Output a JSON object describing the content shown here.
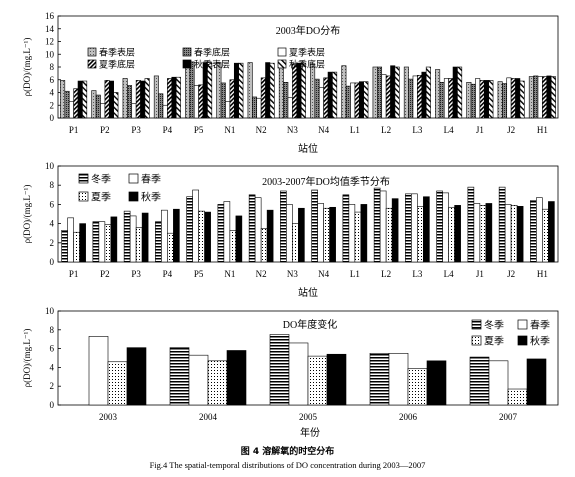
{
  "caption": {
    "cn": "图 4   溶解氧的时空分布",
    "en": "Fig.4    The spatial-temporal distributions of DO concentration during 2003—2007"
  },
  "chart_data": [
    {
      "type": "bar",
      "title": "2003年DO分布",
      "xlabel": "站位",
      "ylabel": "ρ(DO)/(mg.L⁻¹)",
      "ylim": [
        0,
        16
      ],
      "yticks": [
        0,
        2,
        4,
        6,
        8,
        10,
        12,
        14,
        16
      ],
      "legend_position": "top",
      "categories": [
        "P1",
        "P2",
        "P3",
        "P4",
        "P5",
        "N1",
        "N2",
        "N3",
        "N4",
        "L1",
        "L2",
        "L3",
        "L4",
        "J1",
        "J2",
        "H1"
      ],
      "series": [
        {
          "name": "春季表层",
          "pattern": "dots-gray",
          "values": [
            5.9,
            4.3,
            6.2,
            6.6,
            8.7,
            8.7,
            8.7,
            8.7,
            8.5,
            8.2,
            8.0,
            8.0,
            7.6,
            5.6,
            5.7,
            6.5
          ]
        },
        {
          "name": "春季底层",
          "pattern": "dense-dots",
          "values": [
            4.2,
            3.6,
            5.1,
            3.8,
            8.8,
            5.5,
            3.3,
            5.6,
            6.1,
            5.0,
            8.0,
            6.1,
            5.6,
            5.3,
            5.4,
            6.6
          ]
        },
        {
          "name": "夏季表层",
          "pattern": "white",
          "values": [
            2.6,
            2.3,
            2.3,
            2.0,
            5.1,
            2.6,
            3.1,
            3.2,
            4.8,
            5.5,
            6.8,
            6.6,
            6.2,
            6.2,
            6.3,
            6.5
          ]
        },
        {
          "name": "夏季底层",
          "pattern": "hatch-dense",
          "values": [
            4.6,
            5.9,
            5.9,
            6.2,
            5.2,
            6.0,
            6.3,
            8.5,
            6.3,
            5.5,
            6.6,
            6.7,
            6.2,
            5.9,
            6.2,
            6.5
          ]
        },
        {
          "name": "秋季表层",
          "pattern": "black",
          "values": [
            5.8,
            5.8,
            5.8,
            6.4,
            8.7,
            8.6,
            8.7,
            8.6,
            7.2,
            5.7,
            8.2,
            7.2,
            8.0,
            5.9,
            6.2,
            6.6
          ]
        },
        {
          "name": "秋季底层",
          "pattern": "hatch",
          "values": [
            5.8,
            4.0,
            6.2,
            6.4,
            8.7,
            8.6,
            8.6,
            8.6,
            7.2,
            5.7,
            8.0,
            8.0,
            8.0,
            5.9,
            5.8,
            6.5
          ]
        }
      ]
    },
    {
      "type": "bar",
      "title": "2003-2007年DO均值季节分布",
      "xlabel": "站位",
      "ylabel": "ρ(DO)/(mg.L⁻¹)",
      "ylim": [
        0,
        10
      ],
      "yticks": [
        0,
        2,
        4,
        6,
        8,
        10
      ],
      "legend_position": "top-left",
      "categories": [
        "P1",
        "P2",
        "P3",
        "P4",
        "P5",
        "N1",
        "N2",
        "N3",
        "N4",
        "L1",
        "L2",
        "L3",
        "L4",
        "J1",
        "J2",
        "H1"
      ],
      "series": [
        {
          "name": "冬季",
          "pattern": "stripe",
          "values": [
            3.3,
            4.2,
            5.3,
            4.2,
            6.8,
            6.0,
            7.0,
            7.4,
            7.5,
            7.0,
            7.7,
            7.1,
            7.4,
            7.8,
            7.8,
            6.4
          ]
        },
        {
          "name": "春季",
          "pattern": "white",
          "values": [
            4.6,
            4.2,
            4.8,
            5.4,
            7.5,
            6.3,
            6.7,
            6.0,
            6.1,
            6.0,
            7.4,
            7.1,
            7.2,
            6.1,
            6.0,
            6.7
          ]
        },
        {
          "name": "夏季",
          "pattern": "dots",
          "values": [
            3.1,
            3.9,
            3.6,
            3.0,
            5.3,
            3.3,
            3.5,
            4.0,
            5.6,
            5.2,
            5.6,
            5.8,
            5.7,
            5.9,
            5.9,
            5.5
          ]
        },
        {
          "name": "秋季",
          "pattern": "black",
          "values": [
            4.0,
            4.7,
            5.1,
            5.5,
            5.2,
            4.8,
            5.4,
            5.6,
            5.7,
            6.0,
            6.6,
            6.8,
            5.9,
            6.1,
            5.8,
            6.3
          ]
        }
      ]
    },
    {
      "type": "bar",
      "title": "DO年度变化",
      "xlabel": "年份",
      "ylabel": "ρ(DO)/(mg.L⁻¹)",
      "ylim": [
        0,
        10
      ],
      "yticks": [
        0,
        2,
        4,
        6,
        8,
        10
      ],
      "legend_position": "top-right",
      "categories": [
        "2003",
        "2004",
        "2005",
        "2006",
        "2007"
      ],
      "series": [
        {
          "name": "冬季",
          "pattern": "stripe",
          "values": [
            0,
            6.1,
            7.5,
            5.5,
            5.1
          ]
        },
        {
          "name": "春季",
          "pattern": "white",
          "values": [
            7.3,
            5.3,
            6.6,
            5.5,
            4.7
          ]
        },
        {
          "name": "夏季",
          "pattern": "dots",
          "values": [
            4.6,
            4.7,
            5.2,
            3.9,
            1.7
          ]
        },
        {
          "name": "秋季",
          "pattern": "black",
          "values": [
            6.1,
            5.8,
            5.4,
            4.7,
            4.9
          ]
        }
      ]
    }
  ]
}
